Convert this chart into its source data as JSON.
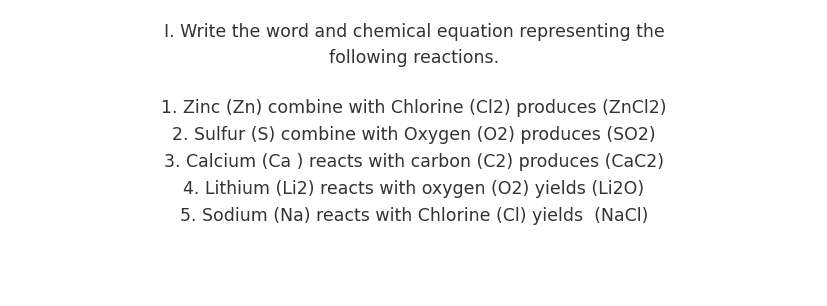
{
  "background_color": "#ffffff",
  "title_line1": "I. Write the word and chemical equation representing the",
  "title_line2": "following reactions.",
  "items": [
    "1. Zinc (Zn) combine with Chlorine (Cl2) produces (ZnCl2)",
    "2. Sulfur (S) combine with Oxygen (O2) produces (SO2)",
    "3. Calcium (Ca ) reacts with carbon (C2) produces (CaC2)",
    "4. Lithium (Li2) reacts with oxygen (O2) yields (Li2O)",
    "5. Sodium (Na) reacts with Chlorine (Cl) yields  (NaCl)"
  ],
  "title_fontsize": 12.5,
  "item_fontsize": 12.5,
  "text_color": "#333333",
  "font_family": "DejaVu Sans"
}
